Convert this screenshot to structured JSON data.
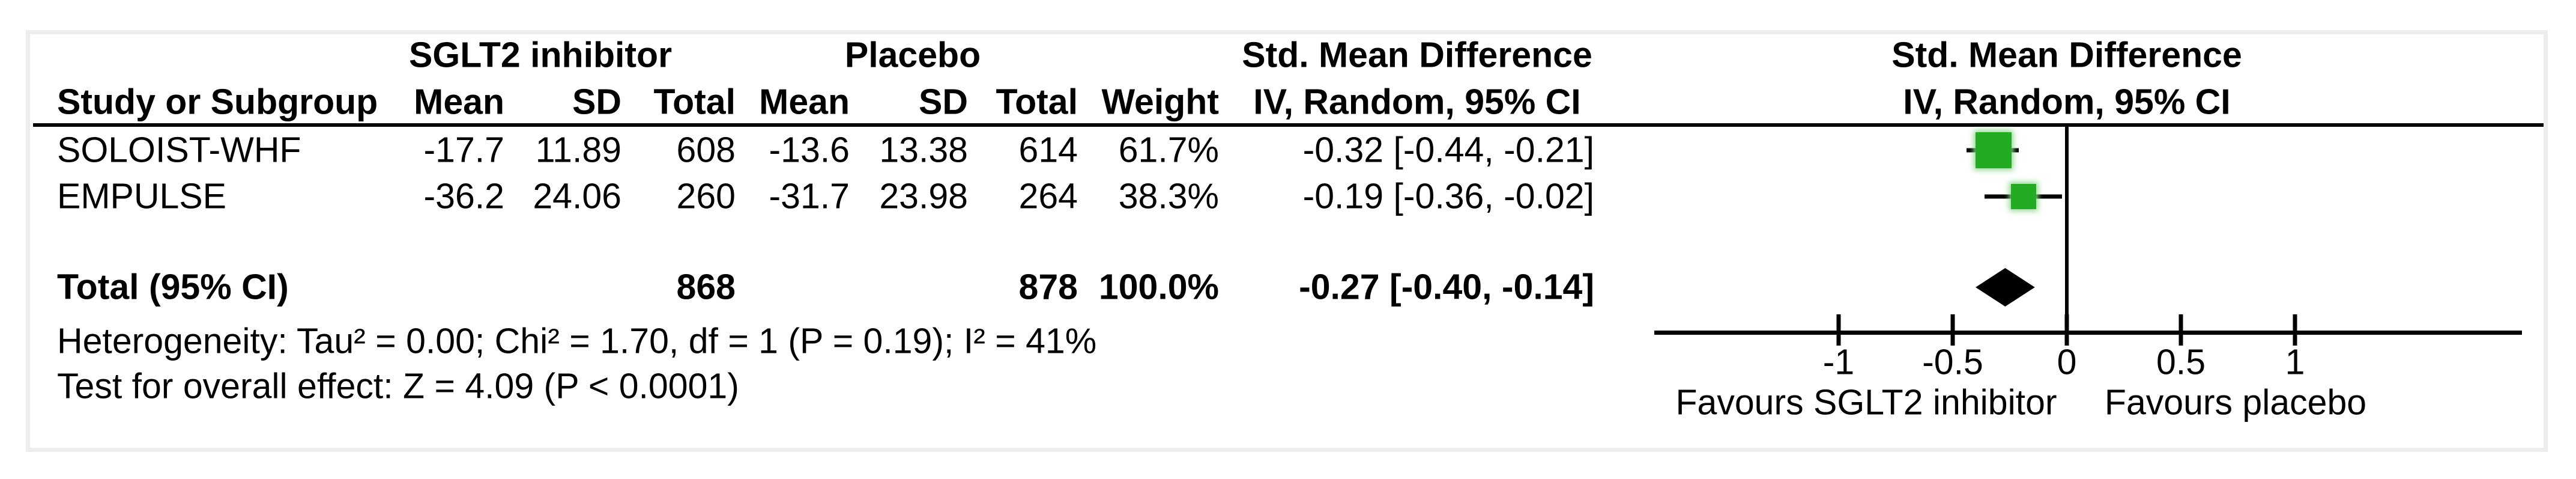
{
  "figure": {
    "left_panel": {
      "group1_header": "SGLT2 inhibitor",
      "group2_header": "Placebo",
      "stat_header_line1": "Std. Mean Difference",
      "stat_header_line2": "IV, Random, 95% CI",
      "col_study": "Study or Subgroup",
      "col_mean": "Mean",
      "col_sd": "SD",
      "col_total": "Total",
      "col_weight": "Weight"
    },
    "right_panel": {
      "header_line1": "Std. Mean Difference",
      "header_line2": "IV, Random, 95% CI",
      "favours_left": "Favours SGLT2 inhibitor",
      "favours_right": "Favours placebo"
    },
    "rows": [
      {
        "study": "SOLOIST-WHF",
        "mean1": "-17.7",
        "sd1": "11.89",
        "total1": "608",
        "mean2": "-13.6",
        "sd2": "13.38",
        "total2": "614",
        "weight": "61.7%",
        "ci_text": "-0.32 [-0.44, -0.21]"
      },
      {
        "study": "EMPULSE",
        "mean1": "-36.2",
        "sd1": "24.06",
        "total1": "260",
        "mean2": "-31.7",
        "sd2": "23.98",
        "total2": "264",
        "weight": "38.3%",
        "ci_text": "-0.19 [-0.36, -0.02]"
      }
    ],
    "total_row": {
      "label": "Total (95% CI)",
      "total1": "868",
      "total2": "878",
      "weight": "100.0%",
      "ci_text": "-0.27 [-0.40, -0.14]"
    },
    "footnotes": {
      "heterogeneity": "Heterogeneity: Tau² = 0.00; Chi² = 1.70, df = 1 (P = 0.19); I² = 41%",
      "overall_effect": "Test for overall effect: Z = 4.09 (P < 0.0001)"
    },
    "axis_tick_labels": [
      "-1",
      "-0.5",
      "0",
      "0.5",
      "1"
    ]
  },
  "chart_data": {
    "type": "forest",
    "effect_measure": "Std. Mean Difference",
    "model": "IV, Random, 95% CI",
    "comparison": "SGLT2 inhibitor vs Placebo",
    "studies": [
      {
        "name": "SOLOIST-WHF",
        "mean_treat": -17.7,
        "sd_treat": 11.89,
        "n_treat": 608,
        "mean_ctrl": -13.6,
        "sd_ctrl": 13.38,
        "n_ctrl": 614,
        "weight_pct": 61.7,
        "smd": -0.32,
        "ci": [
          -0.44,
          -0.21
        ]
      },
      {
        "name": "EMPULSE",
        "mean_treat": -36.2,
        "sd_treat": 24.06,
        "n_treat": 260,
        "mean_ctrl": -31.7,
        "sd_ctrl": 23.98,
        "n_ctrl": 264,
        "weight_pct": 38.3,
        "smd": -0.19,
        "ci": [
          -0.36,
          -0.02
        ]
      }
    ],
    "total": {
      "label": "Total (95% CI)",
      "n_treat": 868,
      "n_ctrl": 878,
      "weight_pct": 100.0,
      "smd": -0.27,
      "ci": [
        -0.4,
        -0.14
      ]
    },
    "heterogeneity": {
      "tau2": 0.0,
      "chi2": 1.7,
      "df": 1,
      "p": 0.19,
      "i2_pct": 41
    },
    "overall_effect": {
      "z": 4.09,
      "p": "< 0.0001"
    },
    "x_axis": {
      "ticks": [
        -1,
        -0.5,
        0,
        0.5,
        1
      ],
      "xlim": [
        -1.8,
        2.0
      ],
      "label_left": "Favours SGLT2 inhibitor",
      "label_right": "Favours placebo"
    },
    "grid": false,
    "legend_position": "none"
  },
  "colors": {
    "marker_green": "#23AC23",
    "marker_glow": "#8FD98F",
    "diamond": "#000000",
    "text": "#000000",
    "frame_border": "#EDEDED",
    "background": "#FFFFFF"
  }
}
